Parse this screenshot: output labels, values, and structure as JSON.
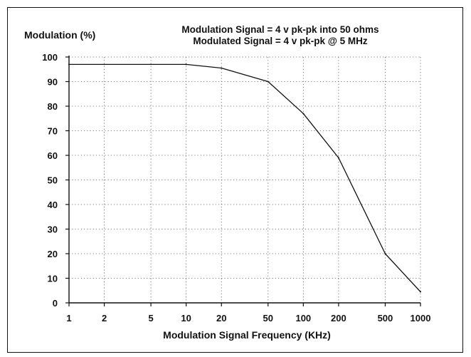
{
  "chart_data": {
    "type": "line",
    "title_lines": [
      "Modulation Signal = 4 v pk-pk into 50 ohms",
      "Modulated Signal = 4 v pk-pk @ 5 MHz"
    ],
    "xlabel": "Modulation Signal Frequency  (KHz)",
    "ylabel": "Modulation (%)",
    "x_scale": "log",
    "xlim": [
      1,
      1000
    ],
    "ylim": [
      0,
      100
    ],
    "x_ticks": [
      1,
      2,
      5,
      10,
      20,
      50,
      100,
      200,
      500,
      1000
    ],
    "x_tick_labels": [
      "1",
      "2",
      "5",
      "10",
      "20",
      "50",
      "100",
      "200",
      "500",
      "1000"
    ],
    "y_ticks": [
      0,
      10,
      20,
      30,
      40,
      50,
      60,
      70,
      80,
      90,
      100
    ],
    "y_tick_labels": [
      "0",
      "10",
      "20",
      "30",
      "40",
      "50",
      "60",
      "70",
      "80",
      "90",
      "100"
    ],
    "grid": true,
    "grid_style": "dotted",
    "series": [
      {
        "x": [
          1,
          10,
          20,
          50,
          100,
          200,
          500,
          1000
        ],
        "y": [
          97,
          97,
          95.5,
          90,
          77,
          59,
          20,
          4.5
        ]
      }
    ],
    "colors": {
      "line": "#111111",
      "grid": "#555555",
      "axis": "#111111"
    }
  }
}
